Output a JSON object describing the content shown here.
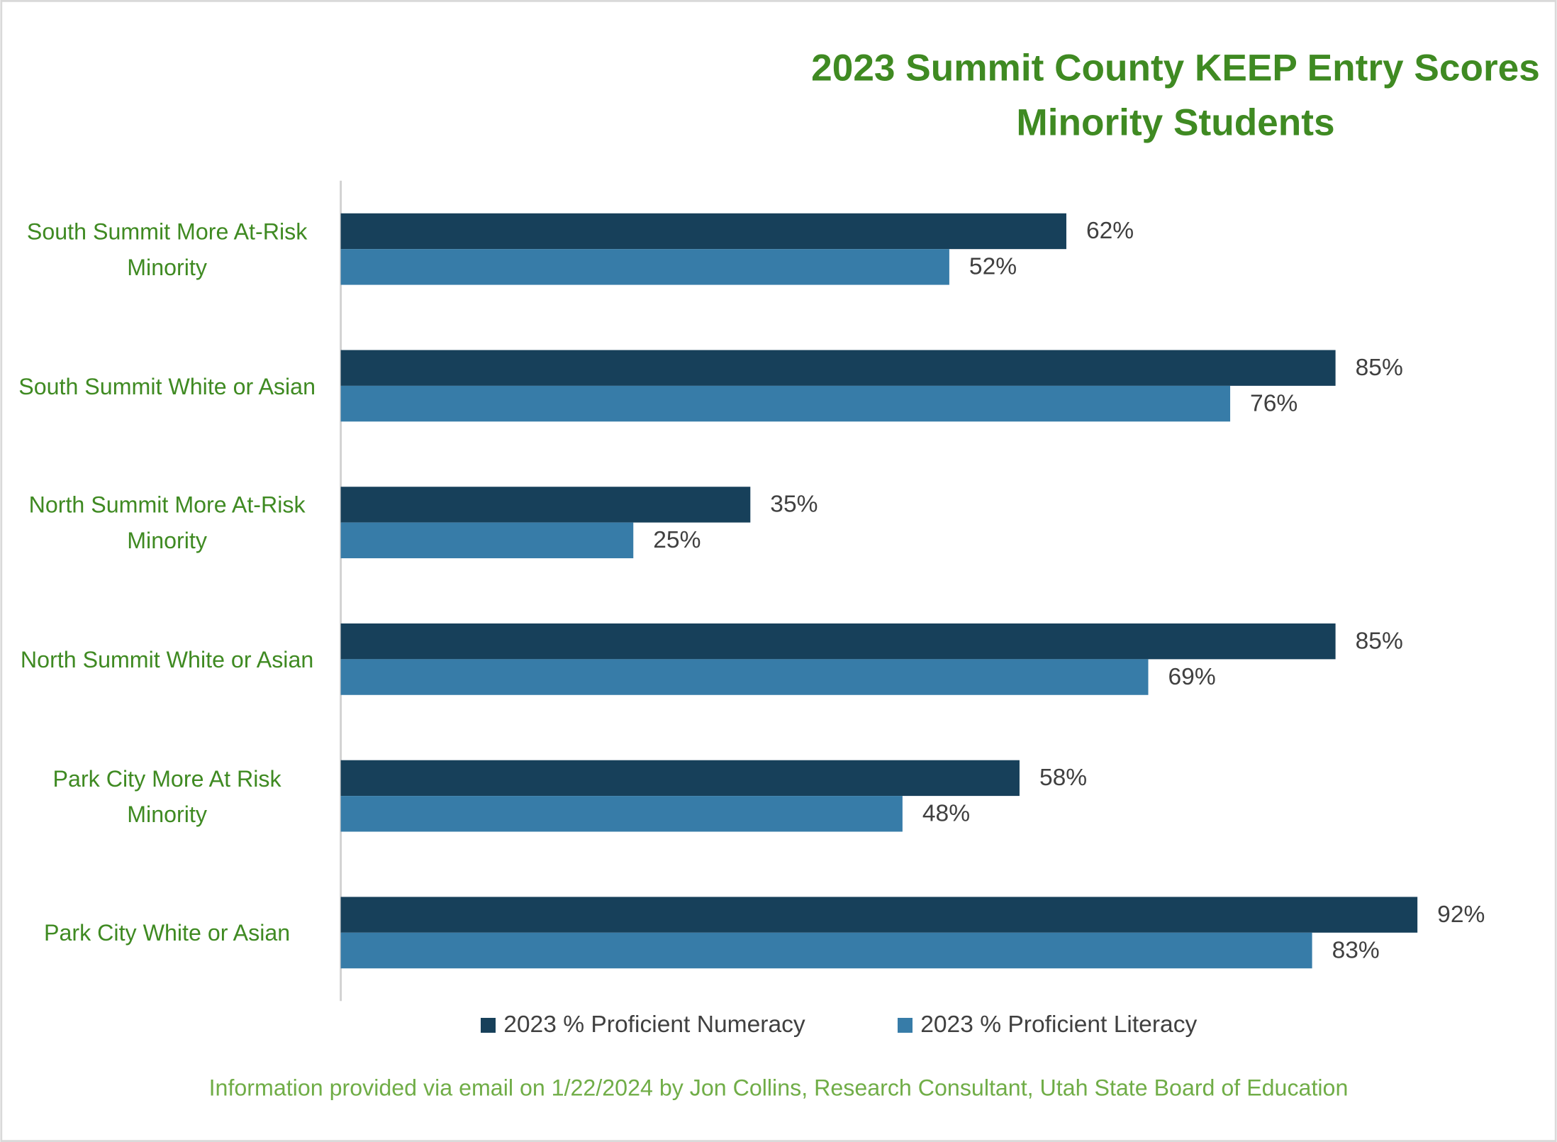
{
  "chart_data": {
    "type": "bar",
    "orientation": "horizontal",
    "title": "2023 Summit County KEEP Entry Scores",
    "subtitle": "Minority Students",
    "categories": [
      "South Summit More At-Risk Minority",
      "South Summit White or Asian",
      "North Summit More At-Risk Minority",
      "North Summit White or Asian",
      "Park City More At Risk Minority",
      "Park City White or Asian"
    ],
    "series": [
      {
        "name": "2023 % Proficient Numeracy",
        "color": "#17405a",
        "values": [
          62,
          85,
          35,
          85,
          58,
          92
        ],
        "value_labels": [
          "62%",
          "85%",
          "35%",
          "85%",
          "58%",
          "92%"
        ]
      },
      {
        "name": "2023 % Proficient Literacy",
        "color": "#377ca8",
        "values": [
          52,
          76,
          25,
          69,
          48,
          83
        ],
        "value_labels": [
          "52%",
          "76%",
          "25%",
          "69%",
          "48%",
          "83%"
        ]
      }
    ],
    "xlim": [
      0,
      100
    ],
    "legend": "bottom",
    "note": "Information provided via email on 1/22/2024 by Jon Collins, Research Consultant, Utah State Board of Education"
  }
}
